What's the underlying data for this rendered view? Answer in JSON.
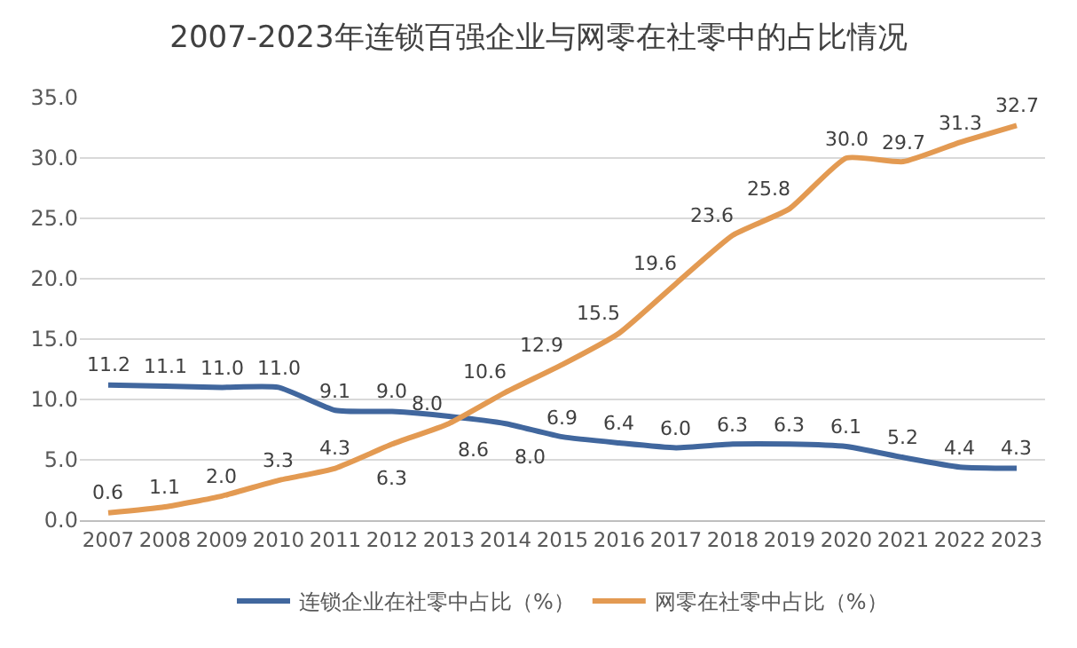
{
  "chart_data": {
    "type": "line",
    "title": "2007-2023年连锁百强企业与网零在社零中的占比情况",
    "categories": [
      "2007",
      "2008",
      "2009",
      "2010",
      "2011",
      "2012",
      "2013",
      "2014",
      "2015",
      "2016",
      "2017",
      "2018",
      "2019",
      "2020",
      "2021",
      "2022",
      "2023"
    ],
    "series": [
      {
        "name": "连锁企业在社零中占比（%）",
        "color": "#41679e",
        "values": [
          11.2,
          11.1,
          11.0,
          11.0,
          9.1,
          9.0,
          8.6,
          8.0,
          6.9,
          6.4,
          6.0,
          6.3,
          6.3,
          6.1,
          5.2,
          4.4,
          4.3
        ],
        "value_labels": [
          "11.2",
          "11.1",
          "11.0",
          "11.0",
          "9.1",
          "9.0",
          "8.6",
          "8.0",
          "6.9",
          "6.4",
          "6.0",
          "6.3",
          "6.3",
          "6.1",
          "5.2",
          "4.4",
          "4.3"
        ]
      },
      {
        "name": "网零在社零中占比（%）",
        "color": "#e39a52",
        "values": [
          0.6,
          1.1,
          2.0,
          3.3,
          4.3,
          6.3,
          8.0,
          10.6,
          12.9,
          15.5,
          19.6,
          23.6,
          25.8,
          30.0,
          29.7,
          31.3,
          32.7
        ],
        "value_labels": [
          "0.6",
          "1.1",
          "2.0",
          "3.3",
          "4.3",
          "6.3",
          "8.0",
          "10.6",
          "12.9",
          "15.5",
          "19.6",
          "23.6",
          "25.8",
          "30.0",
          "29.7",
          "31.3",
          "32.7"
        ]
      }
    ],
    "ylim": [
      0,
      35
    ],
    "yticks": [
      {
        "value": 0,
        "label": "0.0"
      },
      {
        "value": 5,
        "label": "5.0"
      },
      {
        "value": 10,
        "label": "10.0"
      },
      {
        "value": 15,
        "label": "15.0"
      },
      {
        "value": 20,
        "label": "20.0"
      },
      {
        "value": 25,
        "label": "25.0"
      },
      {
        "value": 30,
        "label": "30.0"
      },
      {
        "value": 35,
        "label": "35.0"
      }
    ],
    "grid": "y",
    "legend": "bottom",
    "marker": "none",
    "line_style": "solid"
  }
}
